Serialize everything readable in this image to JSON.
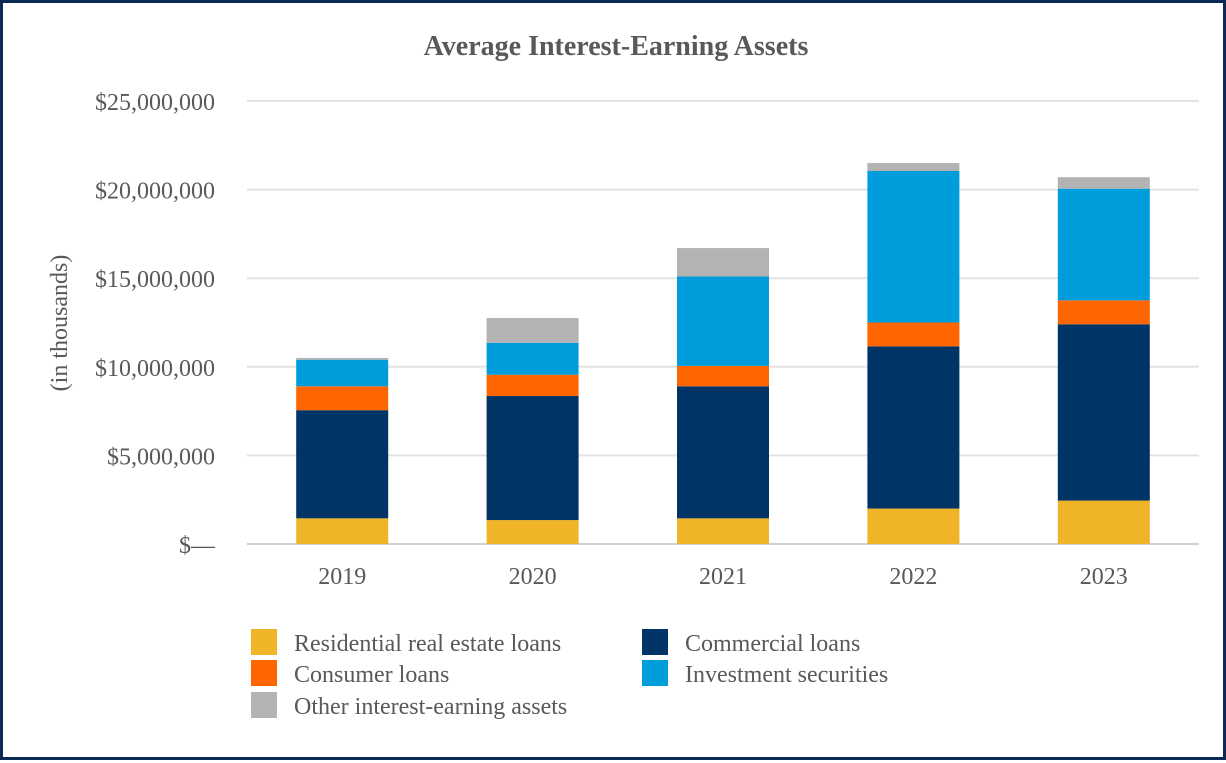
{
  "chart_data": {
    "type": "bar",
    "stacked": true,
    "title": "Average Interest-Earning Assets",
    "xlabel": "",
    "ylabel": "(in thousands)",
    "ylim": [
      0,
      25000000
    ],
    "yticks": [
      0,
      5000000,
      10000000,
      15000000,
      20000000,
      25000000
    ],
    "ytick_labels": [
      "$—",
      "$5,000,000",
      "$10,000,000",
      "$15,000,000",
      "$20,000,000",
      "$25,000,000"
    ],
    "categories": [
      "2019",
      "2020",
      "2021",
      "2022",
      "2023"
    ],
    "grid": true,
    "legend_position": "bottom",
    "series": [
      {
        "name": "Residential real estate loans",
        "color": "#f0b429",
        "values": [
          1450000,
          1350000,
          1450000,
          2000000,
          2450000
        ]
      },
      {
        "name": "Commercial loans",
        "color": "#003366",
        "values": [
          6100000,
          7000000,
          7450000,
          9150000,
          9950000
        ]
      },
      {
        "name": "Consumer loans",
        "color": "#ff6600",
        "values": [
          1350000,
          1200000,
          1150000,
          1350000,
          1350000
        ]
      },
      {
        "name": "Investment securities",
        "color": "#009ddc",
        "values": [
          1500000,
          1800000,
          5050000,
          8550000,
          6300000
        ]
      },
      {
        "name": "Other interest-earning assets",
        "color": "#b3b3b3",
        "values": [
          100000,
          1400000,
          1600000,
          450000,
          650000
        ]
      }
    ]
  }
}
